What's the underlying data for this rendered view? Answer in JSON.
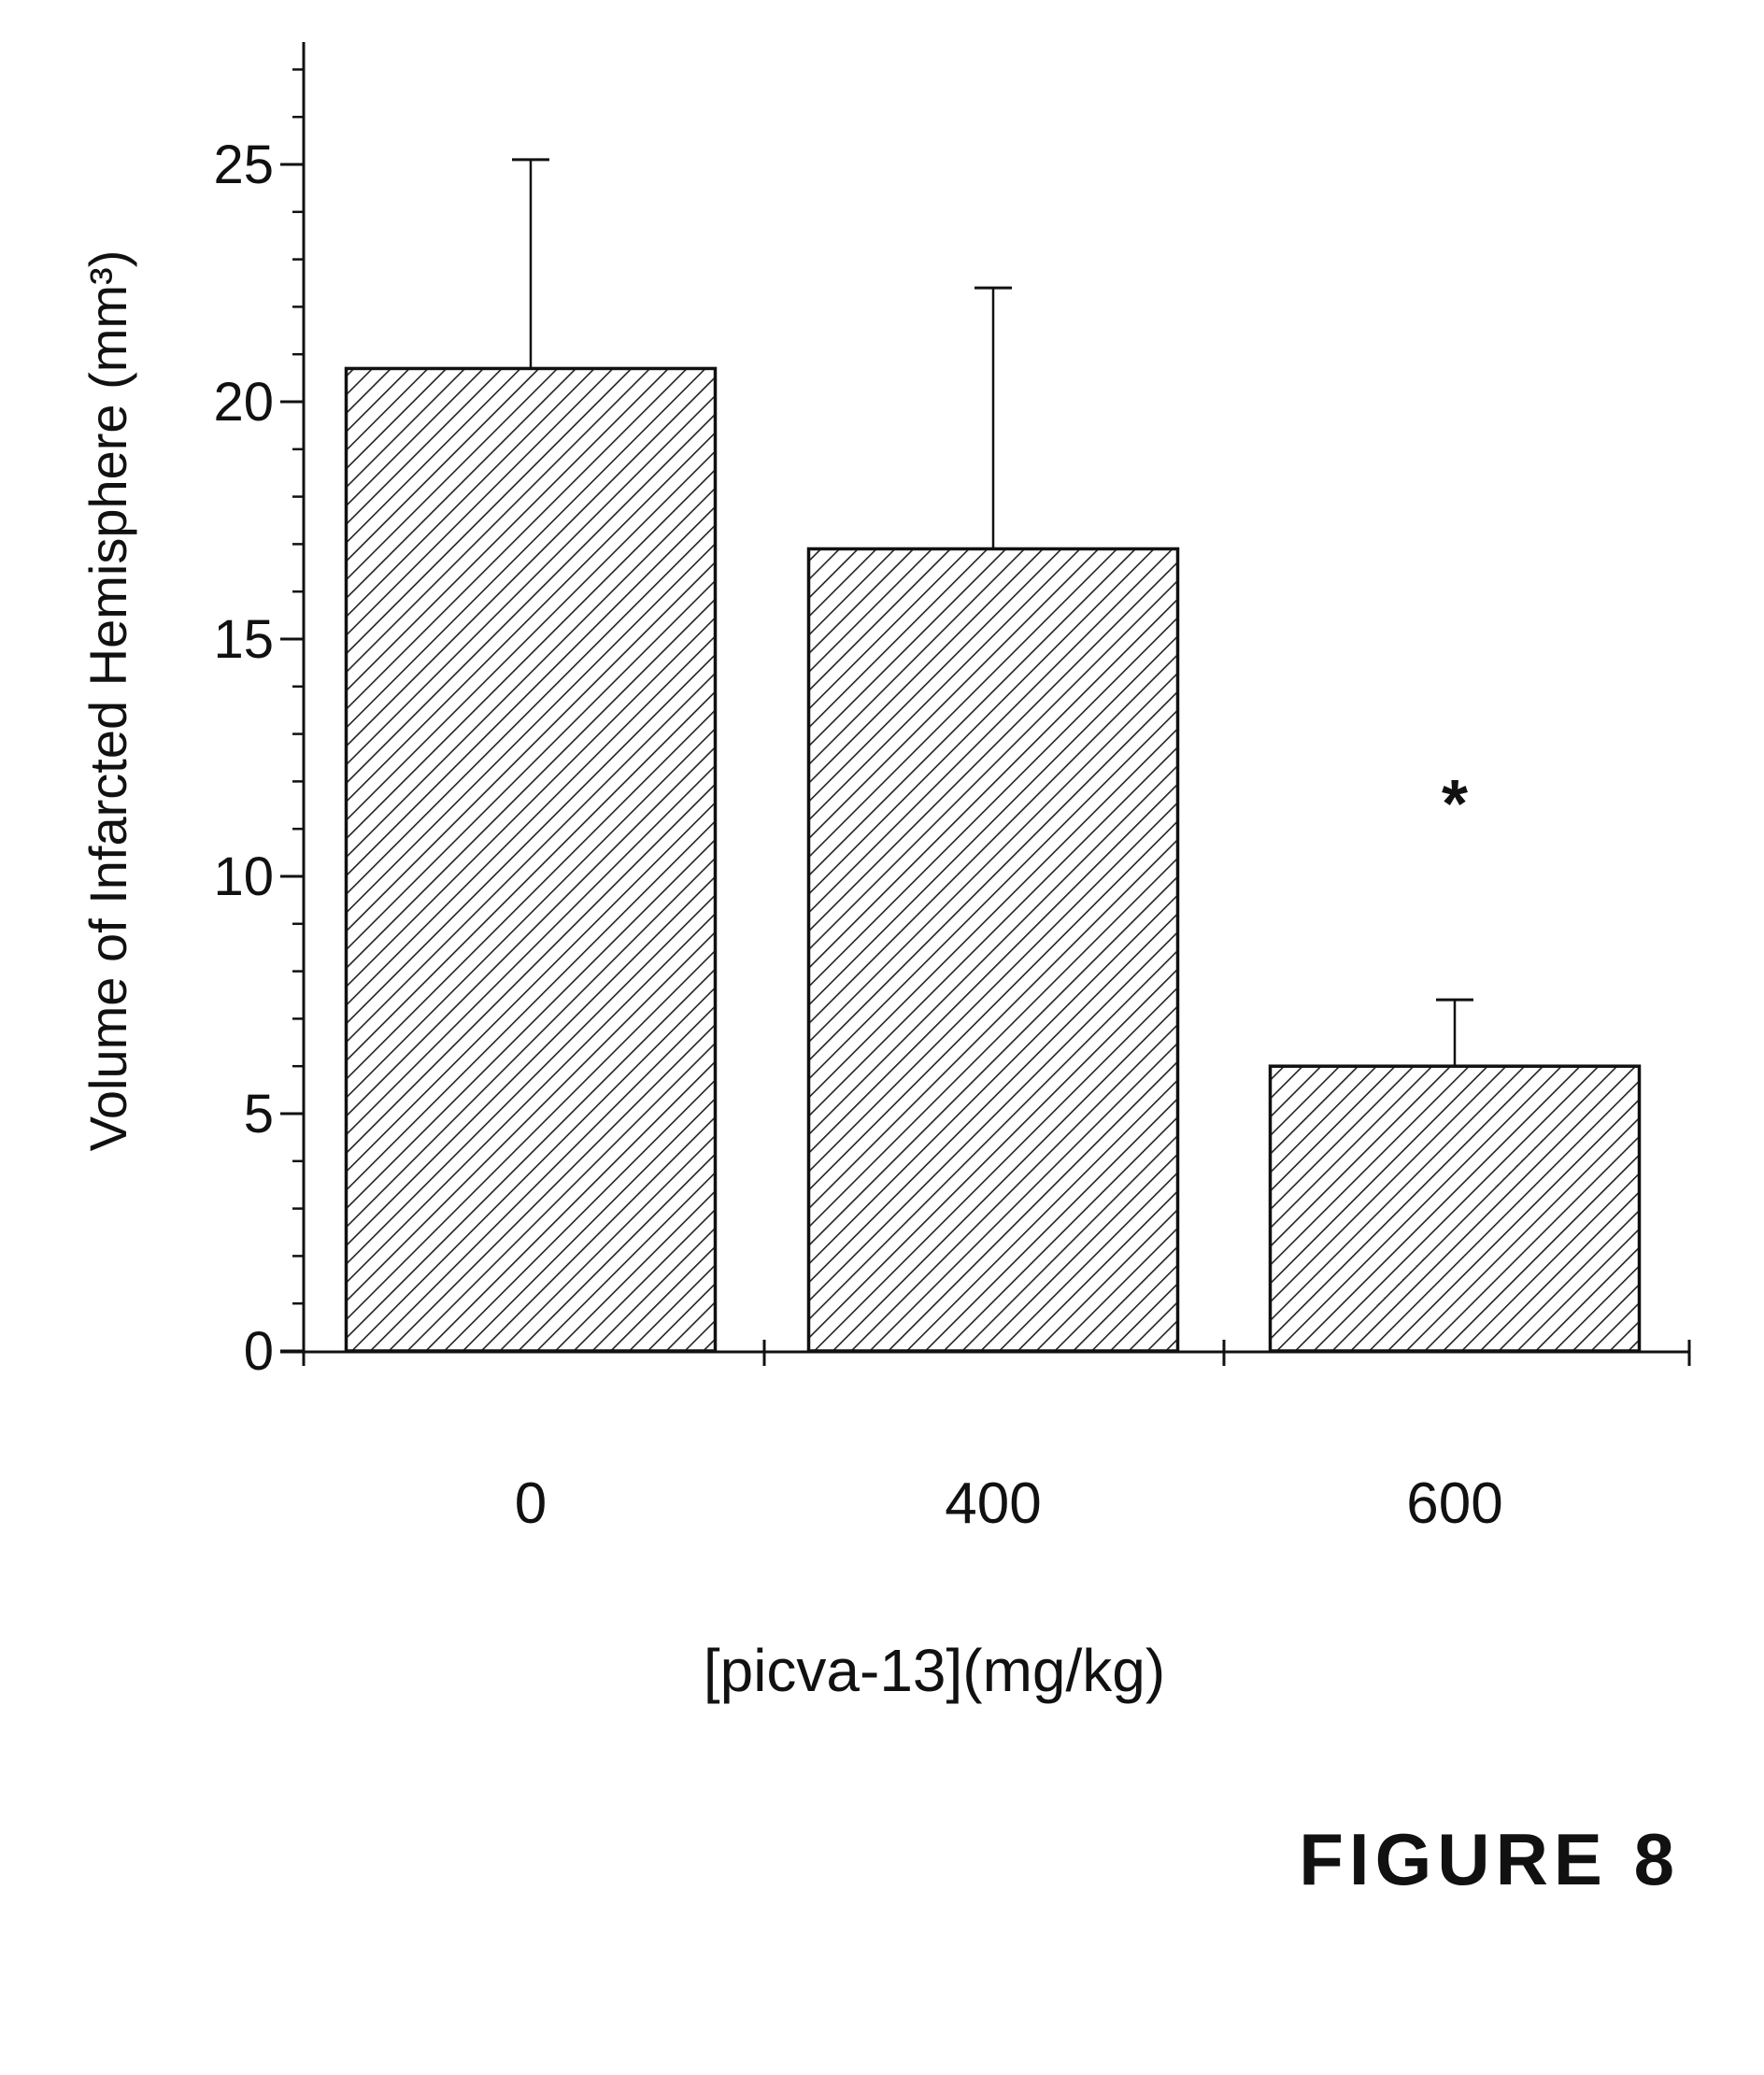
{
  "figure_label": "FIGURE 8",
  "colors": {
    "ink": "#111111",
    "hatch": "#222222",
    "background": "#ffffff"
  },
  "chart_data": {
    "type": "bar",
    "title": "",
    "xlabel": "[picva-13](mg/kg)",
    "ylabel": "Volume of Infarcted Hemisphere (mm³)",
    "categories": [
      "0",
      "400",
      "600"
    ],
    "values": [
      20.7,
      16.9,
      6.0
    ],
    "error_upper": [
      25.1,
      22.4,
      7.4
    ],
    "annotations": [
      "",
      "",
      "*"
    ],
    "ylim": [
      0,
      27.5
    ],
    "yticks": [
      0,
      5,
      10,
      15,
      20,
      25
    ],
    "ytick_labels": [
      "0",
      "5",
      "10",
      "15",
      "20",
      "25"
    ],
    "bar_fill": "diagonal-hatch",
    "grid": false,
    "legend": "none"
  }
}
